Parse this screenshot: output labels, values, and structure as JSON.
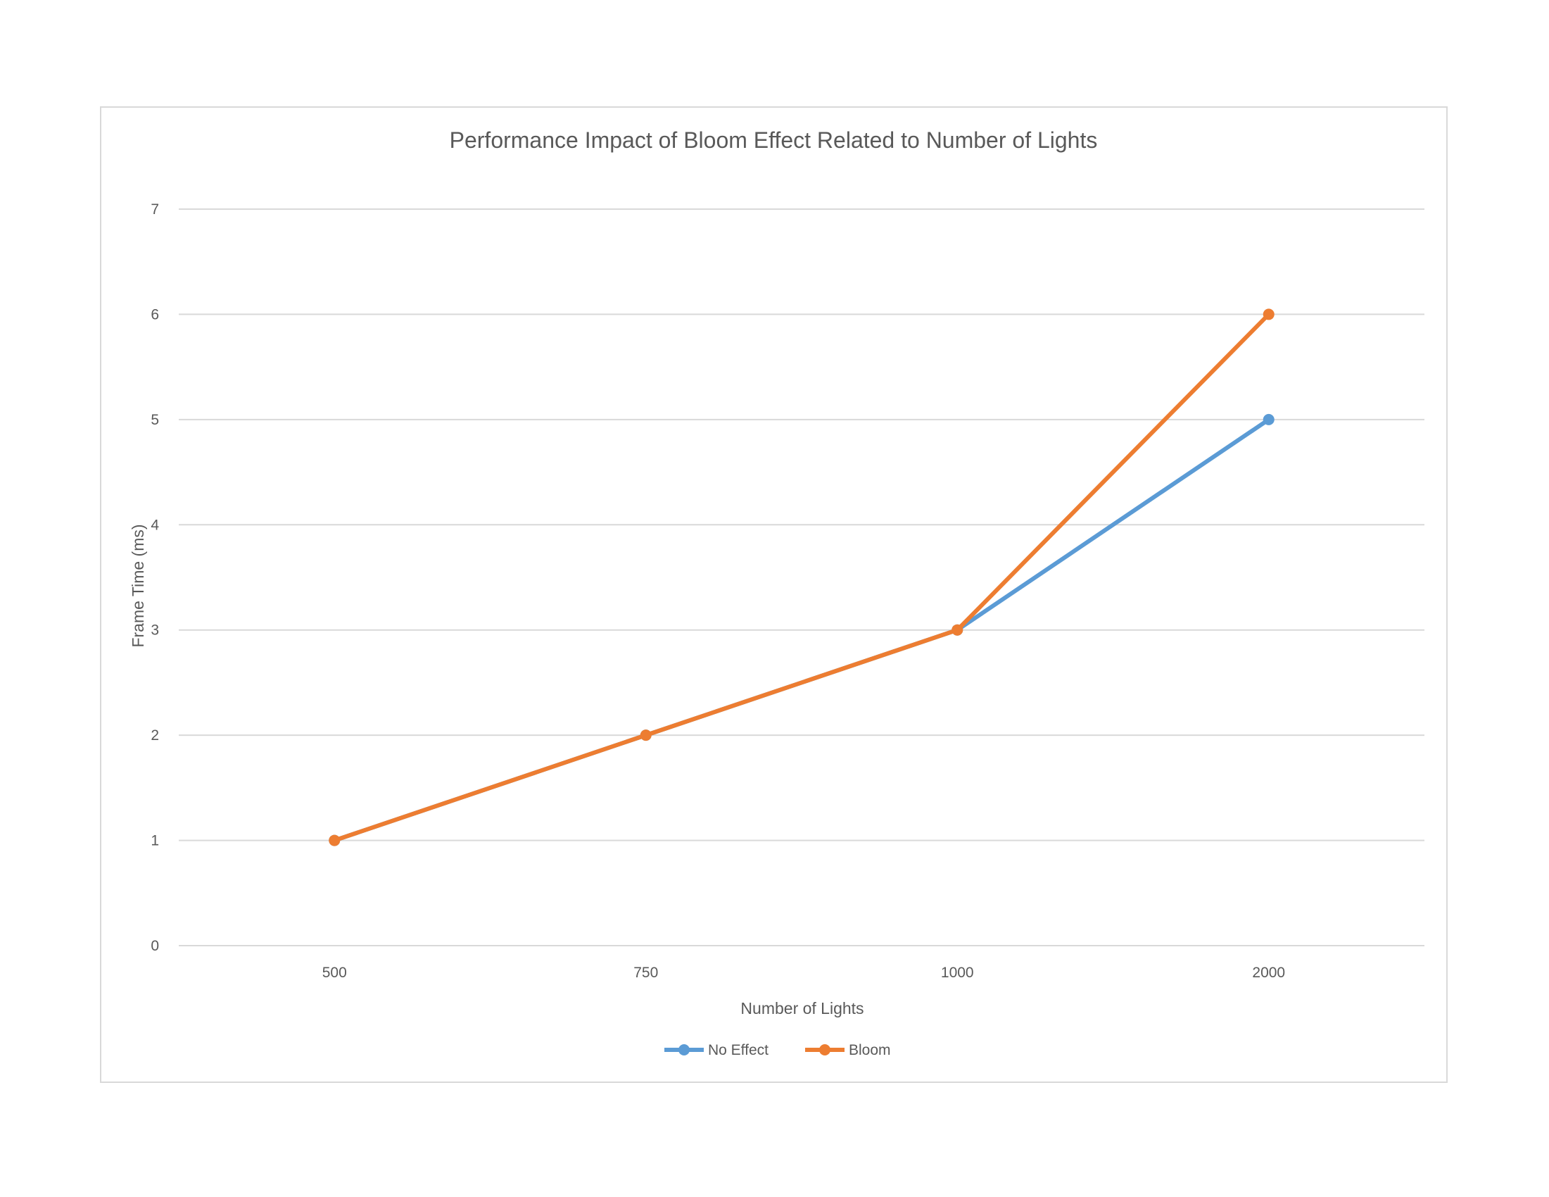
{
  "chart_data": {
    "type": "line",
    "title": "Performance Impact of Bloom Effect Related to Number of Lights",
    "xlabel": "Number of Lights",
    "ylabel": "Frame Time (ms)",
    "categories": [
      "500",
      "750",
      "1000",
      "2000"
    ],
    "ylim": [
      0,
      7
    ],
    "yticks": [
      "0",
      "1",
      "2",
      "3",
      "4",
      "5",
      "6",
      "7"
    ],
    "grid": true,
    "legend_position": "bottom",
    "series": [
      {
        "name": "No Effect",
        "values": [
          1,
          2,
          3,
          5
        ],
        "color": "#5b9bd5"
      },
      {
        "name": "Bloom",
        "values": [
          1,
          2,
          3,
          6
        ],
        "color": "#ed7d31"
      }
    ]
  }
}
